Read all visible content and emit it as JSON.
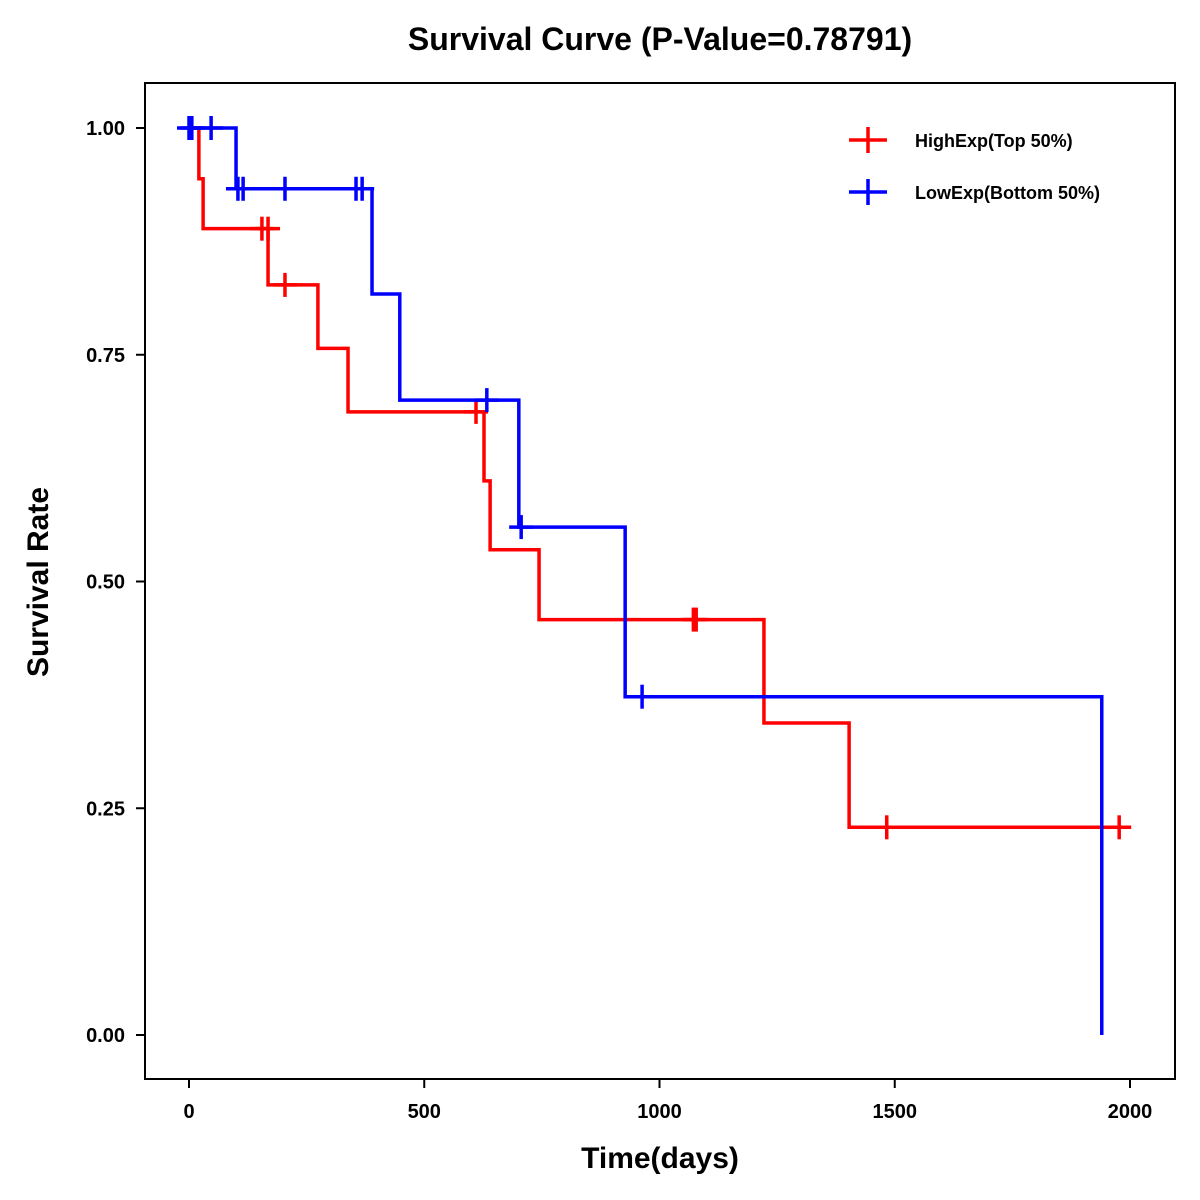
{
  "chart_data": {
    "type": "line",
    "subtype": "kaplan-meier-step",
    "title": "Survival Curve (P-Value=0.78791)",
    "p_value": 0.78791,
    "xlabel": "Time(days)",
    "ylabel": "Survival Rate",
    "xlim": [
      -90,
      2070
    ],
    "ylim": [
      -0.05,
      1.05
    ],
    "xticks": [
      0,
      500,
      1000,
      1500,
      2000
    ],
    "xtick_labels": [
      "0",
      "500",
      "1000",
      "1500",
      "2000"
    ],
    "yticks": [
      0,
      0.25,
      0.5,
      0.75,
      1.0
    ],
    "ytick_labels": [
      "0.00",
      "0.25",
      "0.50",
      "0.75",
      "1.00"
    ],
    "grid": false,
    "legend_position": "top-right",
    "series": [
      {
        "name": "HighExp(Top 50%)",
        "color": "#ff0000",
        "steps": [
          {
            "t": 0,
            "s": 1.0
          },
          {
            "t": 21,
            "s": 0.944
          },
          {
            "t": 30,
            "s": 0.889
          },
          {
            "t": 168,
            "s": 0.827
          },
          {
            "t": 274,
            "s": 0.757
          },
          {
            "t": 338,
            "s": 0.687
          },
          {
            "t": 627,
            "s": 0.611
          },
          {
            "t": 640,
            "s": 0.535
          },
          {
            "t": 744,
            "s": 0.458
          },
          {
            "t": 1222,
            "s": 0.344
          },
          {
            "t": 1403,
            "s": 0.229
          }
        ],
        "end_time": 1977,
        "censored": [
          {
            "t": 155,
            "s": 0.889
          },
          {
            "t": 168,
            "s": 0.889
          },
          {
            "t": 204,
            "s": 0.827
          },
          {
            "t": 610,
            "s": 0.687
          },
          {
            "t": 1072,
            "s": 0.458
          },
          {
            "t": 1078,
            "s": 0.458
          },
          {
            "t": 1483,
            "s": 0.229
          },
          {
            "t": 1977,
            "s": 0.229
          }
        ]
      },
      {
        "name": "LowExp(Bottom 50%)",
        "color": "#0000ff",
        "steps": [
          {
            "t": 0,
            "s": 1.0
          },
          {
            "t": 100,
            "s": 0.933
          },
          {
            "t": 389,
            "s": 0.817
          },
          {
            "t": 448,
            "s": 0.7
          },
          {
            "t": 701,
            "s": 0.56
          },
          {
            "t": 927,
            "s": 0.373
          },
          {
            "t": 1940,
            "s": 0.0
          }
        ],
        "end_time": 1940,
        "censored": [
          {
            "t": 0,
            "s": 1.0
          },
          {
            "t": 6,
            "s": 1.0
          },
          {
            "t": 47,
            "s": 1.0
          },
          {
            "t": 104,
            "s": 0.933
          },
          {
            "t": 115,
            "s": 0.933
          },
          {
            "t": 204,
            "s": 0.933
          },
          {
            "t": 355,
            "s": 0.933
          },
          {
            "t": 368,
            "s": 0.933
          },
          {
            "t": 633,
            "s": 0.7
          },
          {
            "t": 706,
            "s": 0.56
          },
          {
            "t": 963,
            "s": 0.373
          }
        ]
      }
    ]
  }
}
